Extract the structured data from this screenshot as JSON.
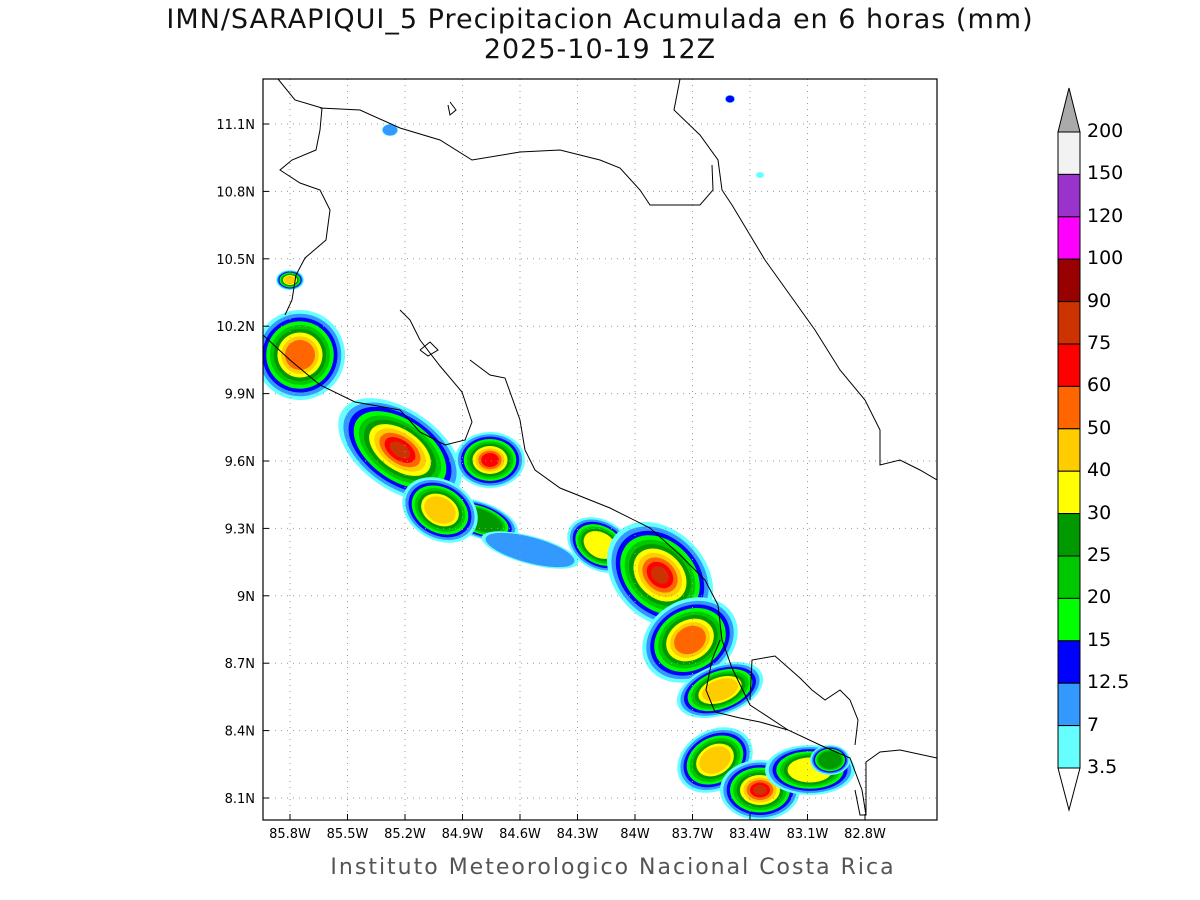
{
  "title": "IMN/SARAPIQUI_5 Precipitacion Acumulada en 6 horas (mm)",
  "subtitle": "2025-10-19 12Z",
  "footer": "Instituto Meteorologico Nacional Costa Rica",
  "map": {
    "lon_ticks": [
      "85.8W",
      "85.5W",
      "85.2W",
      "84.9W",
      "84.6W",
      "84.3W",
      "84W",
      "83.7W",
      "83.4W",
      "83.1W",
      "82.8W"
    ],
    "lat_ticks": [
      "11.1N",
      "10.8N",
      "10.5N",
      "10.2N",
      "9.9N",
      "9.6N",
      "9.3N",
      "9N",
      "8.7N",
      "8.4N",
      "8.1N"
    ]
  },
  "legend": {
    "levels": [
      "200",
      "150",
      "120",
      "100",
      "90",
      "75",
      "60",
      "50",
      "40",
      "30",
      "25",
      "20",
      "15",
      "12.5",
      "7",
      "3.5"
    ],
    "colors": [
      "#f2f2f2",
      "#9933cc",
      "#ff00ff",
      "#990000",
      "#cc3300",
      "#ff0000",
      "#ff6600",
      "#ffcc00",
      "#ffff00",
      "#009900",
      "#00c800",
      "#00ff00",
      "#0000ff",
      "#3399ff",
      "#66ffff"
    ],
    "over_color": "#aaaaaa",
    "under_color": "#ffffff"
  }
}
